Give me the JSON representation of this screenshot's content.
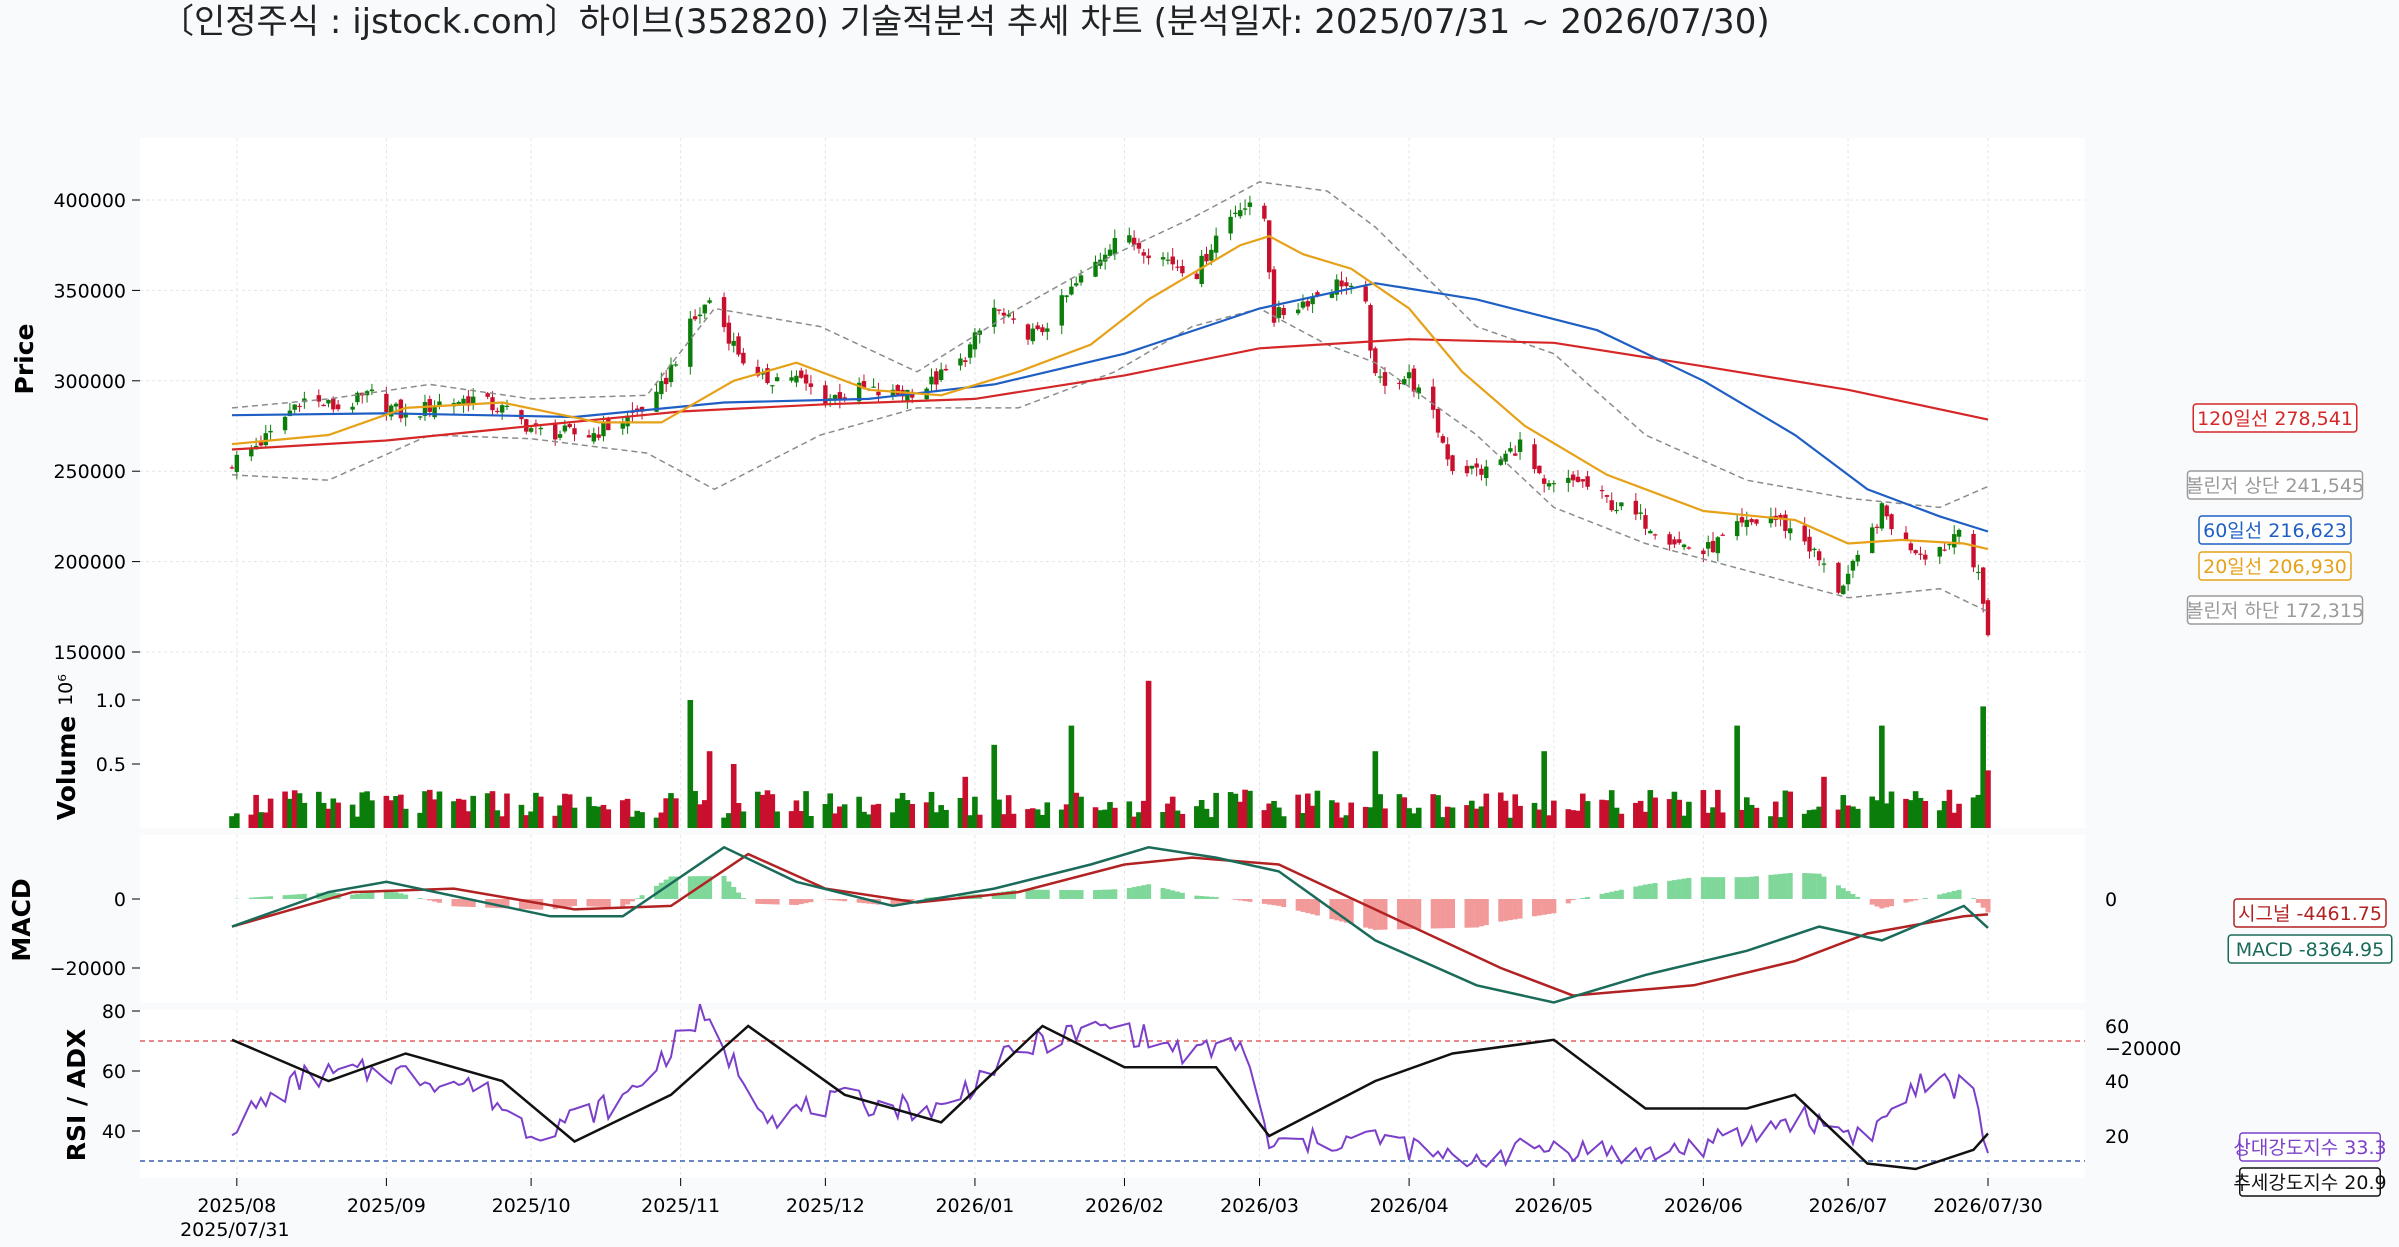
{
  "chart_data": {
    "type": "candlestick",
    "title": "〔인정주식 : ijstock.com〕하이브(352820) 기술적분석 추세 차트 (분석일자: 2025/07/31 ~ 2026/07/30)",
    "date_range": [
      "2025/07/31",
      "2026/07/30"
    ],
    "x_ticks": [
      {
        "label": "2025/08",
        "date": "2025-08-01",
        "sub": "2025/07/31"
      },
      {
        "label": "2025/09",
        "date": "2025-09-01"
      },
      {
        "label": "2025/10",
        "date": "2025-10-01"
      },
      {
        "label": "2025/11",
        "date": "2025-11-01"
      },
      {
        "label": "2025/12",
        "date": "2025-12-01"
      },
      {
        "label": "2026/01",
        "date": "2026-01-01"
      },
      {
        "label": "2026/02",
        "date": "2026-02-01"
      },
      {
        "label": "2026/03",
        "date": "2026-03-01"
      },
      {
        "label": "2026/04",
        "date": "2026-04-01"
      },
      {
        "label": "2026/05",
        "date": "2026-05-01"
      },
      {
        "label": "2026/06",
        "date": "2026-06-01"
      },
      {
        "label": "2026/07",
        "date": "2026-07-01"
      },
      {
        "label": "2026/07/30",
        "date": "2026-07-30"
      }
    ],
    "price": {
      "ylabel": "Price",
      "yticks": [
        150000,
        200000,
        250000,
        300000,
        350000,
        400000
      ],
      "ylim": [
        150000,
        420000
      ],
      "close_series": [
        [
          "2025-07-31",
          255000
        ],
        [
          "2025-08-08",
          270000
        ],
        [
          "2025-08-14",
          290000
        ],
        [
          "2025-08-22",
          285000
        ],
        [
          "2025-08-29",
          292000
        ],
        [
          "2025-09-05",
          280000
        ],
        [
          "2025-09-12",
          288000
        ],
        [
          "2025-09-19",
          290000
        ],
        [
          "2025-09-26",
          283000
        ],
        [
          "2025-10-02",
          272000
        ],
        [
          "2025-10-13",
          270000
        ],
        [
          "2025-10-20",
          278000
        ],
        [
          "2025-10-27",
          290000
        ],
        [
          "2025-11-03",
          330000
        ],
        [
          "2025-11-07",
          345000
        ],
        [
          "2025-11-12",
          320000
        ],
        [
          "2025-11-17",
          300000
        ],
        [
          "2025-11-24",
          303000
        ],
        [
          "2025-12-01",
          290000
        ],
        [
          "2025-12-08",
          295000
        ],
        [
          "2025-12-15",
          292000
        ],
        [
          "2025-12-22",
          297000
        ],
        [
          "2025-12-29",
          310000
        ],
        [
          "2026-01-05",
          340000
        ],
        [
          "2026-01-09",
          330000
        ],
        [
          "2026-01-14",
          325000
        ],
        [
          "2026-01-21",
          350000
        ],
        [
          "2026-01-26",
          365000
        ],
        [
          "2026-01-30",
          380000
        ],
        [
          "2026-02-04",
          375000
        ],
        [
          "2026-02-09",
          368000
        ],
        [
          "2026-02-16",
          360000
        ],
        [
          "2026-02-20",
          380000
        ],
        [
          "2026-02-25",
          398000
        ],
        [
          "2026-03-02",
          390000
        ],
        [
          "2026-03-04",
          335000
        ],
        [
          "2026-03-11",
          345000
        ],
        [
          "2026-03-18",
          355000
        ],
        [
          "2026-03-23",
          340000
        ],
        [
          "2026-03-25",
          300000
        ],
        [
          "2026-04-01",
          302000
        ],
        [
          "2026-04-06",
          280000
        ],
        [
          "2026-04-10",
          252000
        ],
        [
          "2026-04-17",
          250000
        ],
        [
          "2026-04-24",
          265000
        ],
        [
          "2026-04-29",
          240000
        ],
        [
          "2026-05-06",
          245000
        ],
        [
          "2026-05-13",
          232000
        ],
        [
          "2026-05-20",
          222000
        ],
        [
          "2026-05-27",
          210000
        ],
        [
          "2026-06-01",
          205000
        ],
        [
          "2026-06-08",
          218000
        ],
        [
          "2026-06-15",
          225000
        ],
        [
          "2026-06-22",
          212000
        ],
        [
          "2026-06-29",
          185000
        ],
        [
          "2026-07-03",
          200000
        ],
        [
          "2026-07-08",
          228000
        ],
        [
          "2026-07-13",
          210000
        ],
        [
          "2026-07-17",
          205000
        ],
        [
          "2026-07-22",
          210000
        ],
        [
          "2026-07-24",
          222000
        ],
        [
          "2026-07-28",
          190000
        ],
        [
          "2026-07-30",
          162000
        ]
      ],
      "ma20": [
        [
          "2025-07-31",
          265000
        ],
        [
          "2025-08-20",
          270000
        ],
        [
          "2025-09-05",
          285000
        ],
        [
          "2025-09-25",
          288000
        ],
        [
          "2025-10-15",
          277000
        ],
        [
          "2025-10-28",
          277000
        ],
        [
          "2025-11-12",
          300000
        ],
        [
          "2025-11-25",
          310000
        ],
        [
          "2025-12-10",
          295000
        ],
        [
          "2025-12-25",
          292000
        ],
        [
          "2026-01-10",
          305000
        ],
        [
          "2026-01-25",
          320000
        ],
        [
          "2026-02-06",
          345000
        ],
        [
          "2026-02-25",
          375000
        ],
        [
          "2026-03-03",
          380000
        ],
        [
          "2026-03-10",
          370000
        ],
        [
          "2026-03-20",
          362000
        ],
        [
          "2026-04-01",
          340000
        ],
        [
          "2026-04-12",
          305000
        ],
        [
          "2026-04-25",
          275000
        ],
        [
          "2026-05-12",
          248000
        ],
        [
          "2026-06-01",
          228000
        ],
        [
          "2026-06-20",
          223000
        ],
        [
          "2026-07-01",
          210000
        ],
        [
          "2026-07-12",
          212000
        ],
        [
          "2026-07-25",
          210000
        ],
        [
          "2026-07-30",
          206930
        ]
      ],
      "ma60": [
        [
          "2025-07-31",
          281000
        ],
        [
          "2025-09-01",
          282000
        ],
        [
          "2025-10-10",
          280000
        ],
        [
          "2025-11-10",
          288000
        ],
        [
          "2025-12-10",
          290000
        ],
        [
          "2026-01-05",
          298000
        ],
        [
          "2026-02-01",
          315000
        ],
        [
          "2026-03-01",
          340000
        ],
        [
          "2026-03-25",
          354000
        ],
        [
          "2026-04-15",
          345000
        ],
        [
          "2026-05-10",
          328000
        ],
        [
          "2026-06-01",
          300000
        ],
        [
          "2026-06-20",
          270000
        ],
        [
          "2026-07-05",
          240000
        ],
        [
          "2026-07-20",
          225000
        ],
        [
          "2026-07-30",
          216623
        ]
      ],
      "ma120": [
        [
          "2025-07-31",
          262000
        ],
        [
          "2025-09-01",
          267000
        ],
        [
          "2025-10-01",
          275000
        ],
        [
          "2025-11-01",
          283000
        ],
        [
          "2025-12-01",
          287000
        ],
        [
          "2026-01-01",
          290000
        ],
        [
          "2026-02-01",
          303000
        ],
        [
          "2026-03-01",
          318000
        ],
        [
          "2026-04-01",
          323000
        ],
        [
          "2026-05-01",
          321000
        ],
        [
          "2026-06-01",
          308000
        ],
        [
          "2026-07-01",
          295000
        ],
        [
          "2026-07-30",
          278541
        ]
      ],
      "bb_upper": [
        [
          "2025-07-31",
          285000
        ],
        [
          "2025-08-20",
          290000
        ],
        [
          "2025-09-10",
          298000
        ],
        [
          "2025-10-01",
          290000
        ],
        [
          "2025-10-25",
          292000
        ],
        [
          "2025-11-08",
          340000
        ],
        [
          "2025-11-30",
          330000
        ],
        [
          "2025-12-20",
          305000
        ],
        [
          "2026-01-10",
          340000
        ],
        [
          "2026-01-30",
          370000
        ],
        [
          "2026-02-15",
          390000
        ],
        [
          "2026-03-01",
          410000
        ],
        [
          "2026-03-15",
          405000
        ],
        [
          "2026-03-25",
          385000
        ],
        [
          "2026-04-15",
          330000
        ],
        [
          "2026-05-01",
          315000
        ],
        [
          "2026-05-20",
          270000
        ],
        [
          "2026-06-10",
          245000
        ],
        [
          "2026-07-01",
          235000
        ],
        [
          "2026-07-20",
          230000
        ],
        [
          "2026-07-30",
          241545
        ]
      ],
      "bb_lower": [
        [
          "2025-07-31",
          248000
        ],
        [
          "2025-08-20",
          245000
        ],
        [
          "2025-09-10",
          270000
        ],
        [
          "2025-10-01",
          268000
        ],
        [
          "2025-10-25",
          260000
        ],
        [
          "2025-11-08",
          240000
        ],
        [
          "2025-11-30",
          270000
        ],
        [
          "2025-12-20",
          285000
        ],
        [
          "2026-01-10",
          285000
        ],
        [
          "2026-01-30",
          305000
        ],
        [
          "2026-02-15",
          330000
        ],
        [
          "2026-03-01",
          340000
        ],
        [
          "2026-03-15",
          320000
        ],
        [
          "2026-03-25",
          310000
        ],
        [
          "2026-04-15",
          270000
        ],
        [
          "2026-05-01",
          230000
        ],
        [
          "2026-05-20",
          210000
        ],
        [
          "2026-06-10",
          195000
        ],
        [
          "2026-07-01",
          180000
        ],
        [
          "2026-07-20",
          185000
        ],
        [
          "2026-07-30",
          172315
        ]
      ],
      "labels": [
        {
          "text": "120일선 278,541",
          "value": 278541,
          "color": "#d62728"
        },
        {
          "text": "볼린저 상단 241,545",
          "value": 241545,
          "color": "#9a9a9a"
        },
        {
          "text": "60일선 216,623",
          "value": 216623,
          "color": "#1f5fc4"
        },
        {
          "text": "20일선 206,930",
          "value": 206930,
          "color": "#e6a118"
        },
        {
          "text": "볼린저 하단 172,315",
          "value": 172315,
          "color": "#9a9a9a"
        }
      ]
    },
    "volume": {
      "ylabel": "Volume",
      "exponent": "10⁶",
      "yticks": [
        0.5,
        1.0
      ],
      "ylim": [
        0,
        1.15
      ],
      "spikes": [
        [
          "2025-11-03",
          1.0
        ],
        [
          "2025-11-07",
          0.6
        ],
        [
          "2025-11-12",
          0.5
        ],
        [
          "2025-12-30",
          0.4
        ],
        [
          "2026-01-05",
          0.65
        ],
        [
          "2026-01-21",
          0.8
        ],
        [
          "2026-02-06",
          1.15
        ],
        [
          "2026-03-25",
          0.6
        ],
        [
          "2026-04-29",
          0.6
        ],
        [
          "2026-06-08",
          0.8
        ],
        [
          "2026-06-26",
          0.4
        ],
        [
          "2026-07-08",
          0.8
        ],
        [
          "2026-07-29",
          0.95
        ],
        [
          "2026-07-30",
          0.45
        ]
      ]
    },
    "macd": {
      "ylabel": "MACD",
      "yticks": [
        -20000,
        0
      ],
      "ylim": [
        -30000,
        18000
      ],
      "macd": [
        [
          "2025-07-31",
          -8000
        ],
        [
          "2025-08-20",
          2000
        ],
        [
          "2025-09-01",
          5000
        ],
        [
          "2025-10-05",
          -5000
        ],
        [
          "2025-10-20",
          -5000
        ],
        [
          "2025-11-10",
          15000
        ],
        [
          "2025-11-25",
          5000
        ],
        [
          "2025-12-15",
          -2000
        ],
        [
          "2026-01-05",
          3000
        ],
        [
          "2026-01-25",
          10000
        ],
        [
          "2026-02-06",
          15000
        ],
        [
          "2026-02-20",
          12000
        ],
        [
          "2026-03-05",
          8000
        ],
        [
          "2026-03-25",
          -12000
        ],
        [
          "2026-04-15",
          -25000
        ],
        [
          "2026-05-01",
          -30000
        ],
        [
          "2026-05-20",
          -22000
        ],
        [
          "2026-06-10",
          -15000
        ],
        [
          "2026-06-25",
          -8000
        ],
        [
          "2026-07-08",
          -12000
        ],
        [
          "2026-07-25",
          -2000
        ],
        [
          "2026-07-30",
          -8364.95
        ]
      ],
      "signal": [
        [
          "2025-07-31",
          -8000
        ],
        [
          "2025-08-25",
          2000
        ],
        [
          "2025-09-15",
          3000
        ],
        [
          "2025-10-10",
          -3000
        ],
        [
          "2025-10-30",
          -2000
        ],
        [
          "2025-11-15",
          13000
        ],
        [
          "2025-12-01",
          3000
        ],
        [
          "2025-12-20",
          -1000
        ],
        [
          "2026-01-10",
          2000
        ],
        [
          "2026-02-01",
          10000
        ],
        [
          "2026-02-15",
          12000
        ],
        [
          "2026-03-05",
          10000
        ],
        [
          "2026-03-28",
          -5000
        ],
        [
          "2026-04-20",
          -20000
        ],
        [
          "2026-05-05",
          -28000
        ],
        [
          "2026-05-30",
          -25000
        ],
        [
          "2026-06-20",
          -18000
        ],
        [
          "2026-07-05",
          -10000
        ],
        [
          "2026-07-25",
          -5000
        ],
        [
          "2026-07-30",
          -4461.75
        ]
      ],
      "labels": [
        {
          "text": "시그널 -4461.75",
          "color": "#b22222"
        },
        {
          "text": "MACD -8364.95",
          "color": "#1a6b5a"
        }
      ]
    },
    "rsi_adx": {
      "ylabel": "RSI / ADX",
      "yticks_left": [
        40,
        60,
        80
      ],
      "yticks_right": [
        20,
        40,
        60
      ],
      "rsi_lines": [
        70,
        30
      ],
      "rsi": [
        [
          "2025-07-31",
          42
        ],
        [
          "2025-08-15",
          58
        ],
        [
          "2025-09-01",
          60
        ],
        [
          "2025-09-20",
          55
        ],
        [
          "2025-10-01",
          40
        ],
        [
          "2025-10-20",
          50
        ],
        [
          "2025-11-05",
          78
        ],
        [
          "2025-11-20",
          45
        ],
        [
          "2025-12-05",
          50
        ],
        [
          "2025-12-25",
          47
        ],
        [
          "2026-01-05",
          62
        ],
        [
          "2026-01-15",
          70
        ],
        [
          "2026-01-30",
          75
        ],
        [
          "2026-02-15",
          65
        ],
        [
          "2026-02-25",
          70
        ],
        [
          "2026-03-03",
          35
        ],
        [
          "2026-03-25",
          38
        ],
        [
          "2026-04-10",
          30
        ],
        [
          "2026-05-01",
          35
        ],
        [
          "2026-05-20",
          32
        ],
        [
          "2026-06-10",
          38
        ],
        [
          "2026-06-20",
          45
        ],
        [
          "2026-07-05",
          38
        ],
        [
          "2026-07-15",
          55
        ],
        [
          "2026-07-27",
          55
        ],
        [
          "2026-07-30",
          33.3
        ]
      ],
      "adx": [
        [
          "2025-07-31",
          55
        ],
        [
          "2025-08-20",
          40
        ],
        [
          "2025-09-05",
          50
        ],
        [
          "2025-09-25",
          40
        ],
        [
          "2025-10-10",
          18
        ],
        [
          "2025-10-30",
          35
        ],
        [
          "2025-11-15",
          60
        ],
        [
          "2025-12-05",
          35
        ],
        [
          "2025-12-25",
          25
        ],
        [
          "2026-01-15",
          60
        ],
        [
          "2026-02-01",
          45
        ],
        [
          "2026-02-20",
          45
        ],
        [
          "2026-03-03",
          20
        ],
        [
          "2026-03-25",
          40
        ],
        [
          "2026-04-10",
          50
        ],
        [
          "2026-05-01",
          55
        ],
        [
          "2026-05-20",
          30
        ],
        [
          "2026-06-10",
          30
        ],
        [
          "2026-06-20",
          35
        ],
        [
          "2026-07-05",
          10
        ],
        [
          "2026-07-15",
          8
        ],
        [
          "2026-07-27",
          15
        ],
        [
          "2026-07-30",
          20.9
        ]
      ],
      "labels": [
        {
          "text": "상대강도지수 33.3",
          "color": "#7b3fc9"
        },
        {
          "text": "추세강도지수 20.9",
          "color": "#111111"
        }
      ]
    }
  }
}
